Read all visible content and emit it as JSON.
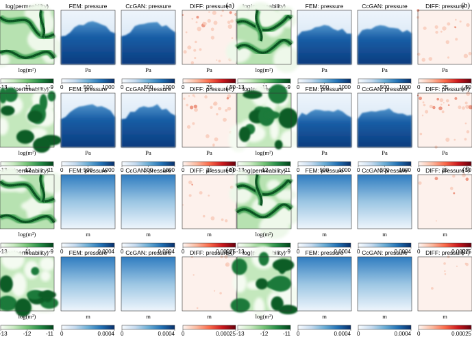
{
  "figure": {
    "columns": [
      {
        "title": "log(permeability)",
        "kind": "perm"
      },
      {
        "title": "FEM: pressure",
        "kind": "press"
      },
      {
        "title": "CcGAN: pressure",
        "kind": "press"
      },
      {
        "title": "DIFF: pressure",
        "kind": "diff"
      }
    ],
    "panels": [
      {
        "letter": "(a)",
        "perm_type": "channel",
        "units": [
          "log(m²)",
          "Pa",
          "Pa",
          "Pa"
        ],
        "ticks": [
          [
            "-13",
            "-11",
            "-9"
          ],
          [
            "0",
            "500",
            "1000"
          ],
          [
            "0",
            "500",
            "1000"
          ],
          [
            "0",
            "25",
            "50"
          ]
        ],
        "pressure_style": "front",
        "diff_level": 0.22
      },
      {
        "letter": "(b)",
        "perm_type": "channel",
        "units": [
          "log(m²)",
          "Pa",
          "Pa",
          "Pa"
        ],
        "ticks": [
          [
            "-13",
            "-11",
            "-9"
          ],
          [
            "0",
            "500",
            "1000"
          ],
          [
            "0",
            "500",
            "1000"
          ],
          [
            "0",
            "25",
            "50"
          ]
        ],
        "pressure_style": "front",
        "diff_level": 0.14
      },
      {
        "letter": "(c)",
        "perm_type": "gaussian",
        "units": [
          "log(m²)",
          "Pa",
          "Pa",
          "Pa"
        ],
        "ticks": [
          [
            "-13",
            "-12",
            "-11"
          ],
          [
            "0",
            "500",
            "1000"
          ],
          [
            "0",
            "500",
            "1000"
          ],
          [
            "0",
            "25",
            "50"
          ]
        ],
        "pressure_style": "front",
        "diff_level": 0.18
      },
      {
        "letter": "(d)",
        "perm_type": "gaussian",
        "units": [
          "log(m²)",
          "Pa",
          "Pa",
          "Pa"
        ],
        "ticks": [
          [
            "-13",
            "-12",
            "-11"
          ],
          [
            "0",
            "500",
            "1000"
          ],
          [
            "0",
            "500",
            "1000"
          ],
          [
            "0",
            "25",
            "50"
          ]
        ],
        "pressure_style": "front",
        "diff_level": 0.2
      },
      {
        "letter": "(e)",
        "perm_type": "channel",
        "units": [
          "log(m²)",
          "m",
          "m",
          "m"
        ],
        "ticks": [
          [
            "-13",
            "-11",
            "-9"
          ],
          [
            "0",
            "0.0004"
          ],
          [
            "0",
            "0.0004"
          ],
          [
            "0",
            "0.00025"
          ]
        ],
        "pressure_style": "gradient",
        "diff_level": 0.07
      },
      {
        "letter": "(f)",
        "perm_type": "channel",
        "units": [
          "log(m²)",
          "m",
          "m",
          "m"
        ],
        "ticks": [
          [
            "-13",
            "-11",
            "-9"
          ],
          [
            "0",
            "0.0004"
          ],
          [
            "0",
            "0.0004"
          ],
          [
            "0",
            "0.00025"
          ]
        ],
        "pressure_style": "gradient",
        "diff_level": 0.05
      },
      {
        "letter": "(g)",
        "perm_type": "gaussian",
        "units": [
          "log(m²)",
          "m",
          "m",
          "m"
        ],
        "ticks": [
          [
            "-13",
            "-12",
            "-11"
          ],
          [
            "0",
            "0.0004"
          ],
          [
            "0",
            "0.0004"
          ],
          [
            "0",
            "0.00025"
          ]
        ],
        "pressure_style": "gradient",
        "diff_level": 0.06
      },
      {
        "letter": "(h)",
        "perm_type": "gaussian",
        "units": [
          "log(m²)",
          "m",
          "m",
          "m"
        ],
        "ticks": [
          [
            "-13",
            "-12",
            "-11"
          ],
          [
            "0",
            "0.0004"
          ],
          [
            "0",
            "0.0004"
          ],
          [
            "0",
            "0.00025"
          ]
        ],
        "pressure_style": "gradient",
        "diff_level": 0.05
      }
    ],
    "colors": {
      "green_low": "#f7fcf5",
      "green_high": "#00441b",
      "blue_low": "#f7fbff",
      "blue_high": "#08306b",
      "red_low": "#fff5f0",
      "red_high": "#67000d"
    }
  }
}
